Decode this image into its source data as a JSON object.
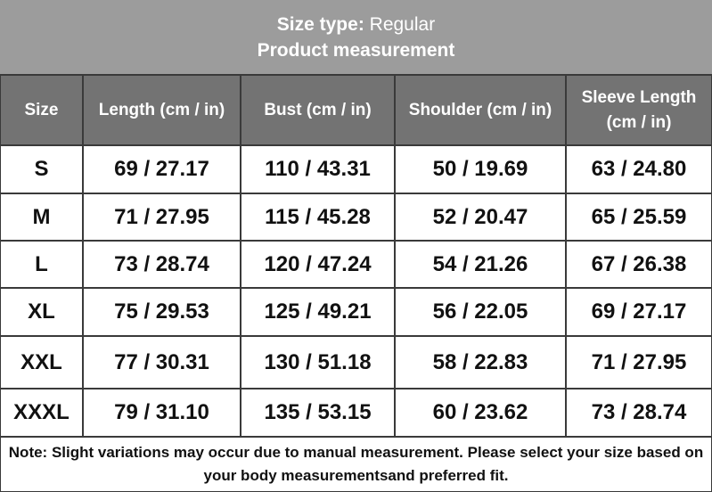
{
  "header": {
    "size_type_label": "Size type:",
    "size_type": "Regular",
    "subtitle": "Product measurement"
  },
  "table": {
    "columns": [
      "Size",
      "Length (cm / in)",
      "Bust (cm / in)",
      "Shoulder (cm / in)",
      "Sleeve Length (cm / in)"
    ],
    "rows": [
      [
        "S",
        "69 / 27.17",
        "110 / 43.31",
        "50 / 19.69",
        "63 / 24.80"
      ],
      [
        "M",
        "71 / 27.95",
        "115 / 45.28",
        "52 / 20.47",
        "65 / 25.59"
      ],
      [
        "L",
        "73 / 28.74",
        "120 / 47.24",
        "54 / 21.26",
        "67 / 26.38"
      ],
      [
        "XL",
        "75 / 29.53",
        "125 / 49.21",
        "56 / 22.05",
        "69 / 27.17"
      ],
      [
        "XXL",
        "77 / 30.31",
        "130 / 51.18",
        "58 / 22.83",
        "71 / 27.95"
      ],
      [
        "XXXL",
        "79 / 31.10",
        "135 / 53.15",
        "60 / 23.62",
        "73 / 28.74"
      ]
    ]
  },
  "note": "Note: Slight variations may occur due to manual measurement. Please select your size based on your body measurementsand preferred fit."
}
